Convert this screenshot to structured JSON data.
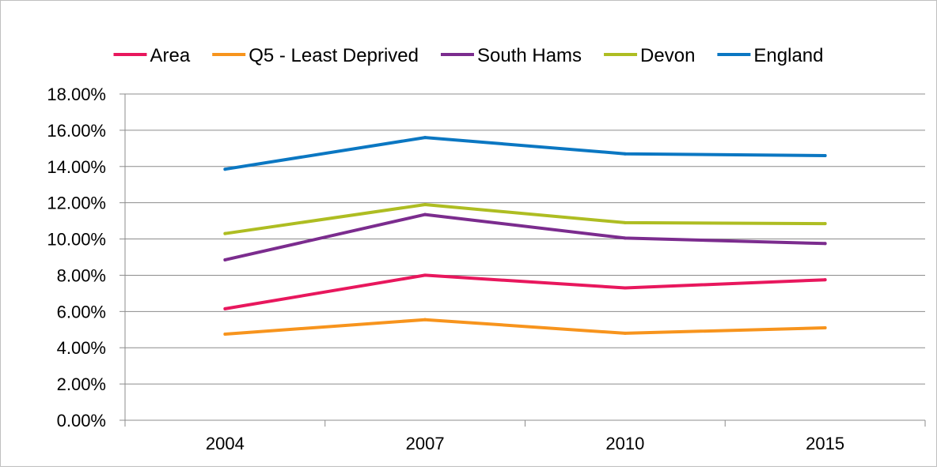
{
  "chart_data": {
    "type": "line",
    "title": "",
    "xlabel": "",
    "ylabel": "",
    "categories": [
      "2004",
      "2007",
      "2010",
      "2015"
    ],
    "ylim": [
      0,
      18
    ],
    "y_ticks": [
      "0.00%",
      "2.00%",
      "4.00%",
      "6.00%",
      "8.00%",
      "10.00%",
      "12.00%",
      "14.00%",
      "16.00%",
      "18.00%"
    ],
    "grid": true,
    "legend_position": "top",
    "series": [
      {
        "name": "Area",
        "color": "#e8175d",
        "values": [
          6.15,
          8.0,
          7.3,
          7.75
        ]
      },
      {
        "name": "Q5 - Least Deprived",
        "color": "#f7941d",
        "values": [
          4.75,
          5.55,
          4.8,
          5.1
        ]
      },
      {
        "name": "South Hams",
        "color": "#7b2c8e",
        "values": [
          8.85,
          11.35,
          10.05,
          9.75
        ]
      },
      {
        "name": "Devon",
        "color": "#aebd22",
        "values": [
          10.3,
          11.9,
          10.9,
          10.85
        ]
      },
      {
        "name": "England",
        "color": "#0b77c2",
        "values": [
          13.85,
          15.6,
          14.7,
          14.6
        ]
      }
    ]
  }
}
